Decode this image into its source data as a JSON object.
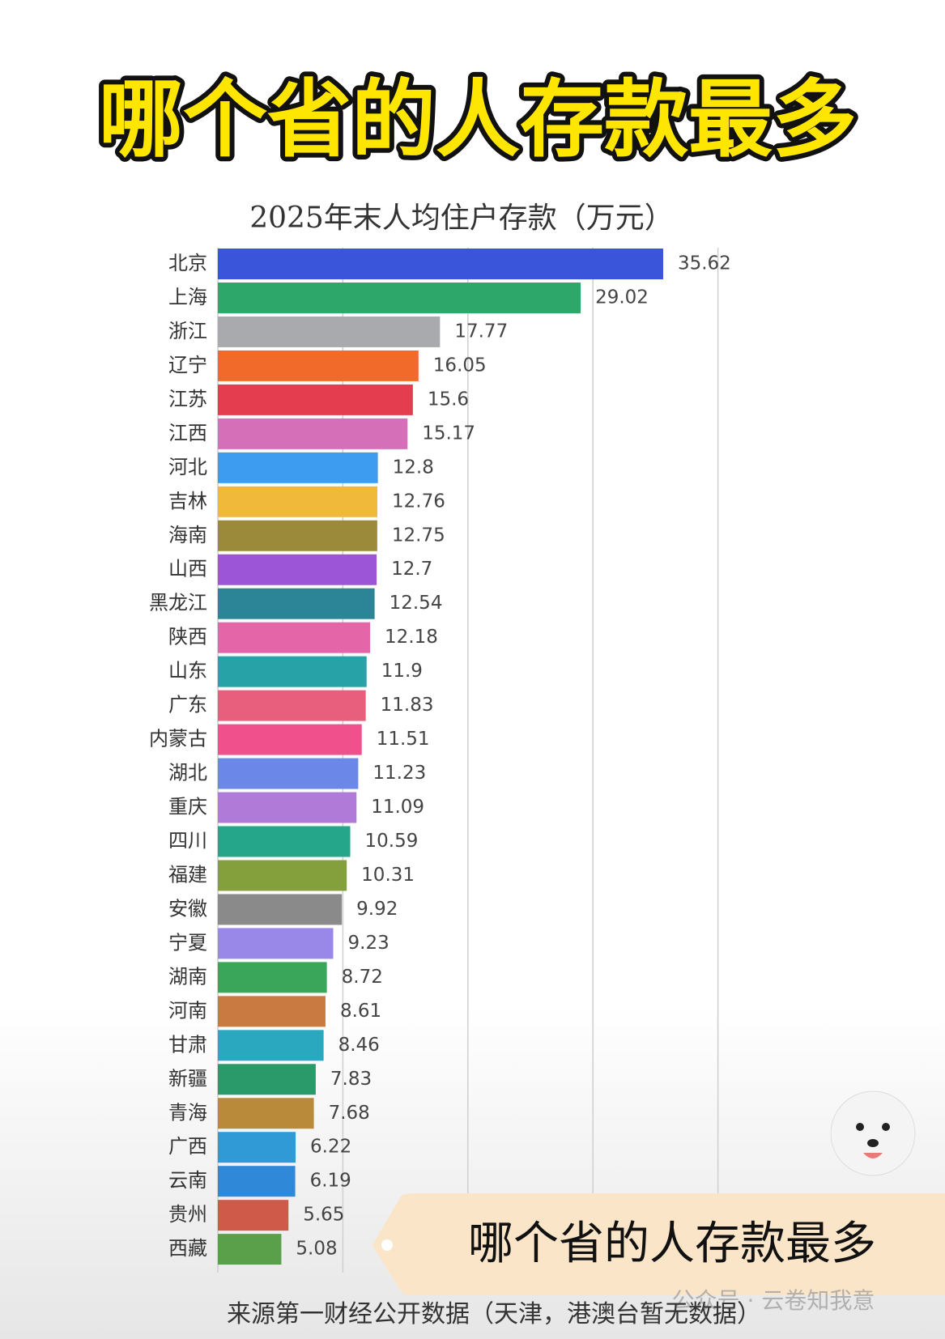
{
  "headline": "哪个省的人存款最多",
  "banner": "哪个省的人存款最多",
  "watermark": "公众号 · 云卷知我意",
  "chart_data": {
    "type": "barh",
    "title": "2025年末人均住户存款（万元）",
    "source": "来源第一财经公开数据（天津，港澳台暂无数据）",
    "categories": [
      "北京",
      "上海",
      "浙江",
      "辽宁",
      "江苏",
      "江西",
      "河北",
      "吉林",
      "海南",
      "山西",
      "黑龙江",
      "陕西",
      "山东",
      "广东",
      "内蒙古",
      "湖北",
      "重庆",
      "四川",
      "福建",
      "安徽",
      "宁夏",
      "湖南",
      "河南",
      "甘肃",
      "新疆",
      "青海",
      "广西",
      "云南",
      "贵州",
      "西藏"
    ],
    "values": [
      35.62,
      29.02,
      17.77,
      16.05,
      15.6,
      15.17,
      12.8,
      12.76,
      12.75,
      12.7,
      12.54,
      12.18,
      11.9,
      11.83,
      11.51,
      11.23,
      11.09,
      10.59,
      10.31,
      9.92,
      9.23,
      8.72,
      8.61,
      8.46,
      7.83,
      7.68,
      6.22,
      6.19,
      5.65,
      5.08
    ],
    "colors": [
      "#3a55d9",
      "#2ea86a",
      "#a8aaae",
      "#f26a2a",
      "#e33d4f",
      "#d46fb8",
      "#3d9cf0",
      "#f0b93a",
      "#9a8a3a",
      "#9b55d6",
      "#2b8596",
      "#e466a8",
      "#27a3a8",
      "#e85f7e",
      "#f0508c",
      "#6b88e8",
      "#b07ad8",
      "#25a58a",
      "#83a03c",
      "#8a8a8a",
      "#9a88e8",
      "#3aa65a",
      "#c97a40",
      "#2aa8c0",
      "#2a9a6a",
      "#b88a3a",
      "#2f9ad6",
      "#2f88d8",
      "#d05a4a",
      "#5aa04a"
    ],
    "xlim": [
      0,
      40
    ],
    "xticks": [
      10,
      20,
      30,
      40
    ],
    "grid": true
  }
}
